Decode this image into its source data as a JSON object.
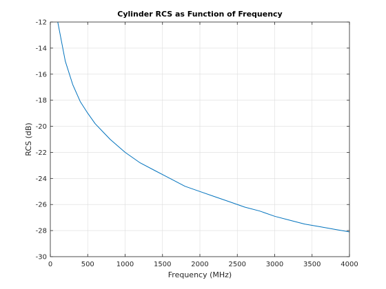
{
  "chart_data": {
    "type": "line",
    "title": "Cylinder RCS as Function of Frequency",
    "xlabel": "Frequency (MHz)",
    "ylabel": "RCS (dB)",
    "xlim": [
      0,
      4000
    ],
    "ylim": [
      -30,
      -12
    ],
    "xticks": [
      0,
      500,
      1000,
      1500,
      2000,
      2500,
      3000,
      3500,
      4000
    ],
    "yticks": [
      -30,
      -28,
      -26,
      -24,
      -22,
      -20,
      -18,
      -16,
      -14,
      -12
    ],
    "xtick_labels": [
      "0",
      "500",
      "1000",
      "1500",
      "2000",
      "2500",
      "3000",
      "3500",
      "4000"
    ],
    "ytick_labels": [
      "-30",
      "-28",
      "-26",
      "-24",
      "-22",
      "-20",
      "-18",
      "-16",
      "-14",
      "-12"
    ],
    "grid": true,
    "series": [
      {
        "color": "#0072BD",
        "x": [
          100,
          200,
          300,
          400,
          500,
          600,
          700,
          800,
          900,
          1000,
          1200,
          1400,
          1600,
          1800,
          2000,
          2200,
          2400,
          2600,
          2800,
          3000,
          3200,
          3400,
          3600,
          3800,
          4000
        ],
        "y": [
          -12.0,
          -15.0,
          -16.8,
          -18.1,
          -19.0,
          -19.8,
          -20.4,
          -21.0,
          -21.5,
          -22.0,
          -22.8,
          -23.4,
          -24.0,
          -24.6,
          -25.0,
          -25.4,
          -25.8,
          -26.2,
          -26.5,
          -26.9,
          -27.2,
          -27.5,
          -27.7,
          -27.9,
          -28.1
        ]
      }
    ]
  }
}
